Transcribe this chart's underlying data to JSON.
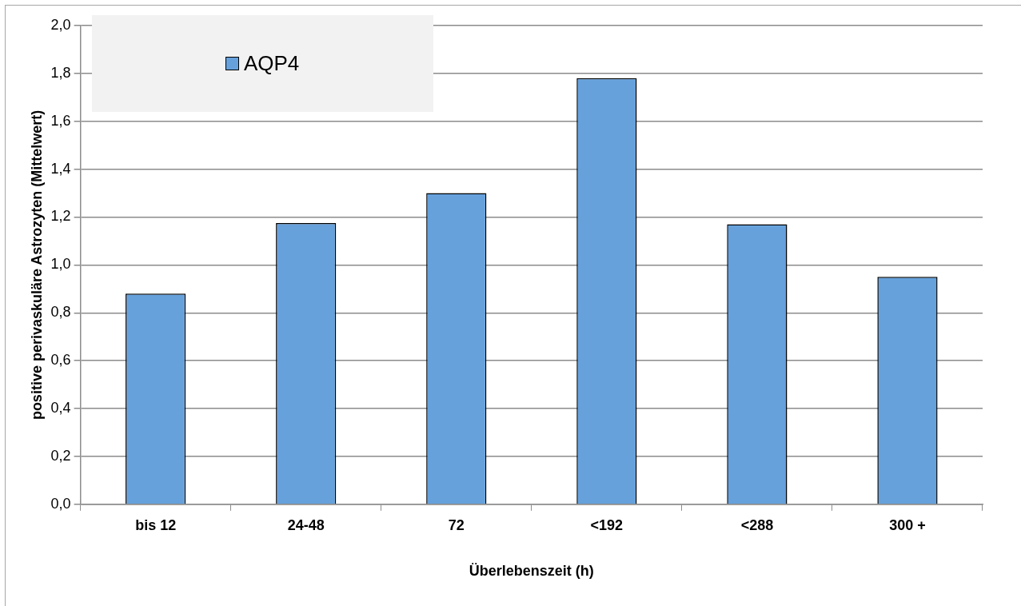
{
  "chart_data": {
    "type": "bar",
    "xlabel": "Überlebenszeit (h)",
    "ylabel": "positive perivaskuläre Astrozyten (Mittelwert)",
    "categories": [
      "bis 12",
      "24-48",
      "72",
      "<192",
      "<288",
      "300 +"
    ],
    "series": [
      {
        "name": "AQP4",
        "color": "#66a1dc",
        "values": [
          0.88,
          1.175,
          1.3,
          1.78,
          1.17,
          0.95
        ]
      }
    ],
    "ylim": [
      0,
      2
    ],
    "yticks": [
      {
        "value": 0,
        "label": "0,0"
      },
      {
        "value": 0.2,
        "label": "0,2"
      },
      {
        "value": 0.4,
        "label": "0,4"
      },
      {
        "value": 0.6,
        "label": "0,6"
      },
      {
        "value": 0.8,
        "label": "0,8"
      },
      {
        "value": 1,
        "label": "1,0"
      },
      {
        "value": 1.2,
        "label": "1,2"
      },
      {
        "value": 1.4,
        "label": "1,4"
      },
      {
        "value": 1.6,
        "label": "1,6"
      },
      {
        "value": 1.8,
        "label": "1,8"
      },
      {
        "value": 2,
        "label": "2,0"
      }
    ],
    "grid": "y",
    "legend": "top left"
  }
}
